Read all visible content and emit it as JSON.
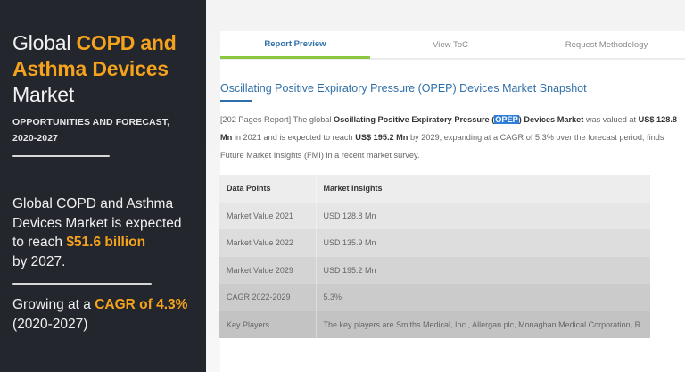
{
  "left_panel": {
    "title_prefix": "Global ",
    "title_highlight": "COPD and Asthma Devices",
    "title_suffix": "Market",
    "subtitle_line1": "OPPORTUNITIES AND FORECAST,",
    "subtitle_line2": "2020-2027",
    "summary_text": "Global COPD and Asthma Devices Market is expected to reach ",
    "summary_highlight": "$51.6 billion",
    "summary_end": "by 2027.",
    "growth_prefix": "Growing at a ",
    "growth_highlight": "CAGR of 4.3%",
    "growth_period": "(2020-2027)",
    "accent_color": "#f5a21c",
    "background_color": "#23262d"
  },
  "tabs": [
    {
      "label": "Report Preview",
      "active": true
    },
    {
      "label": "View ToC",
      "active": false
    },
    {
      "label": "Request Methodology",
      "active": false
    }
  ],
  "snapshot": {
    "title": "Oscillating Positive Expiratory Pressure (OPEP) Devices Market Snapshot",
    "para_1": "[202 Pages Report] The global ",
    "para_bold_1": "Oscillating Positive Expiratory Pressure (",
    "para_selected": "OPEP",
    "para_bold_2": ") Devices Market",
    "para_2": " was valued at ",
    "para_bold_3": "US$ 128.8 Mn",
    "para_3": " in 2021 and is expected to reach ",
    "para_bold_4": "US$ 195.2 Mn",
    "para_4": " by 2029, expanding at a CAGR of 5.3% over the forecast period, finds Future Market Insights (FMI) in a recent market survey."
  },
  "table": {
    "headers": [
      "Data Points",
      "Market Insights"
    ],
    "rows": [
      [
        "Market Value 2021",
        "USD 128.8 Mn"
      ],
      [
        "Market Value 2022",
        "USD 135.9 Mn"
      ],
      [
        "Market Value 2029",
        "USD 195.2 Mn"
      ],
      [
        "CAGR 2022-2029",
        "5.3%"
      ],
      [
        "Key Players",
        "The key players are Smiths Medical, Inc., Allergan plc, Monaghan Medical Corporation, R."
      ]
    ]
  },
  "colors": {
    "link_blue": "#2f6fa8",
    "tab_active_underline": "#8dc63f"
  }
}
